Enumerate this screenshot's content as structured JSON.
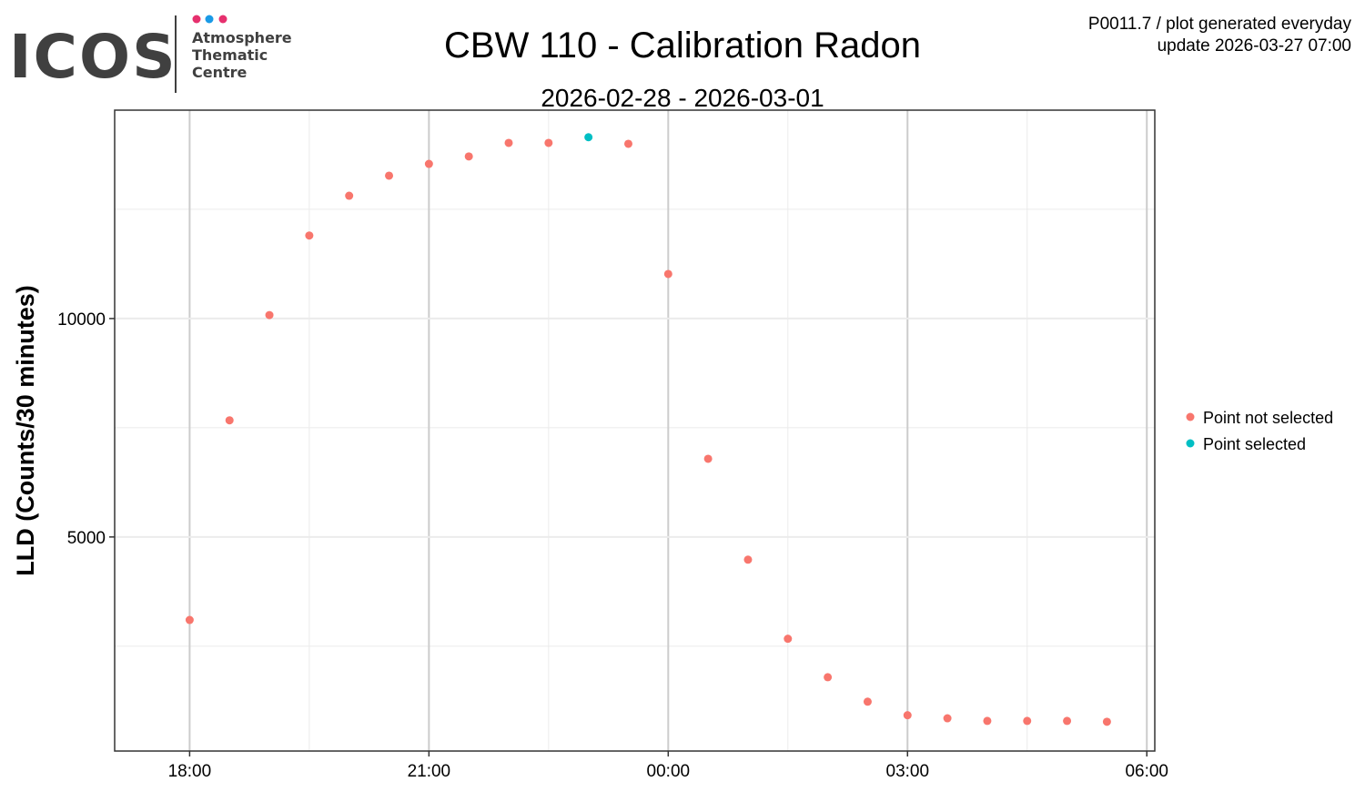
{
  "logo": {
    "main": "ICOS",
    "lines": [
      "Atmosphere",
      "Thematic",
      "Centre"
    ],
    "dot_colors": [
      "#e6306e",
      "#1a9ae6",
      "#e6306e"
    ]
  },
  "header": {
    "info_line1": "P0011.7 / plot generated everyday",
    "info_line2": "update  2026-03-27 07:00"
  },
  "chart_data": {
    "type": "scatter",
    "title": "CBW 110 - Calibration Radon",
    "subtitle": "2026-02-28 - 2026-03-01",
    "xlabel": "",
    "ylabel": "LLD (Counts/30 minutes)",
    "x_unit": "hours since 2026-02-28 00:00",
    "xlim": [
      17.06,
      30.1
    ],
    "ylim": [
      100,
      14770
    ],
    "x_ticks": [
      18,
      21,
      24,
      27,
      30
    ],
    "x_tick_labels": [
      "18:00",
      "21:00",
      "00:00",
      "03:00",
      "06:00"
    ],
    "y_ticks": [
      5000,
      10000
    ],
    "y_tick_labels": [
      "5000",
      "10000"
    ],
    "grid": true,
    "legend": {
      "position": "right",
      "entries": [
        {
          "name": "Point not selected",
          "color": "#f8766d"
        },
        {
          "name": "Point selected",
          "color": "#00bfc4"
        }
      ]
    },
    "series": [
      {
        "name": "Point not selected",
        "color": "#f8766d",
        "x": [
          18,
          18.5,
          19,
          19.5,
          20,
          20.5,
          21,
          21.5,
          22,
          22.5,
          23.5,
          24,
          24.5,
          25,
          25.5,
          26,
          26.5,
          27,
          27.5,
          28,
          28.5,
          29,
          29.5
        ],
        "y": [
          3100,
          7670,
          10080,
          11900,
          12810,
          13270,
          13540,
          13710,
          14020,
          14020,
          14000,
          11020,
          6790,
          4480,
          2670,
          1790,
          1230,
          920,
          850,
          790,
          790,
          790,
          770
        ]
      },
      {
        "name": "Point selected",
        "color": "#00bfc4",
        "x": [
          23
        ],
        "y": [
          14150
        ]
      }
    ]
  }
}
